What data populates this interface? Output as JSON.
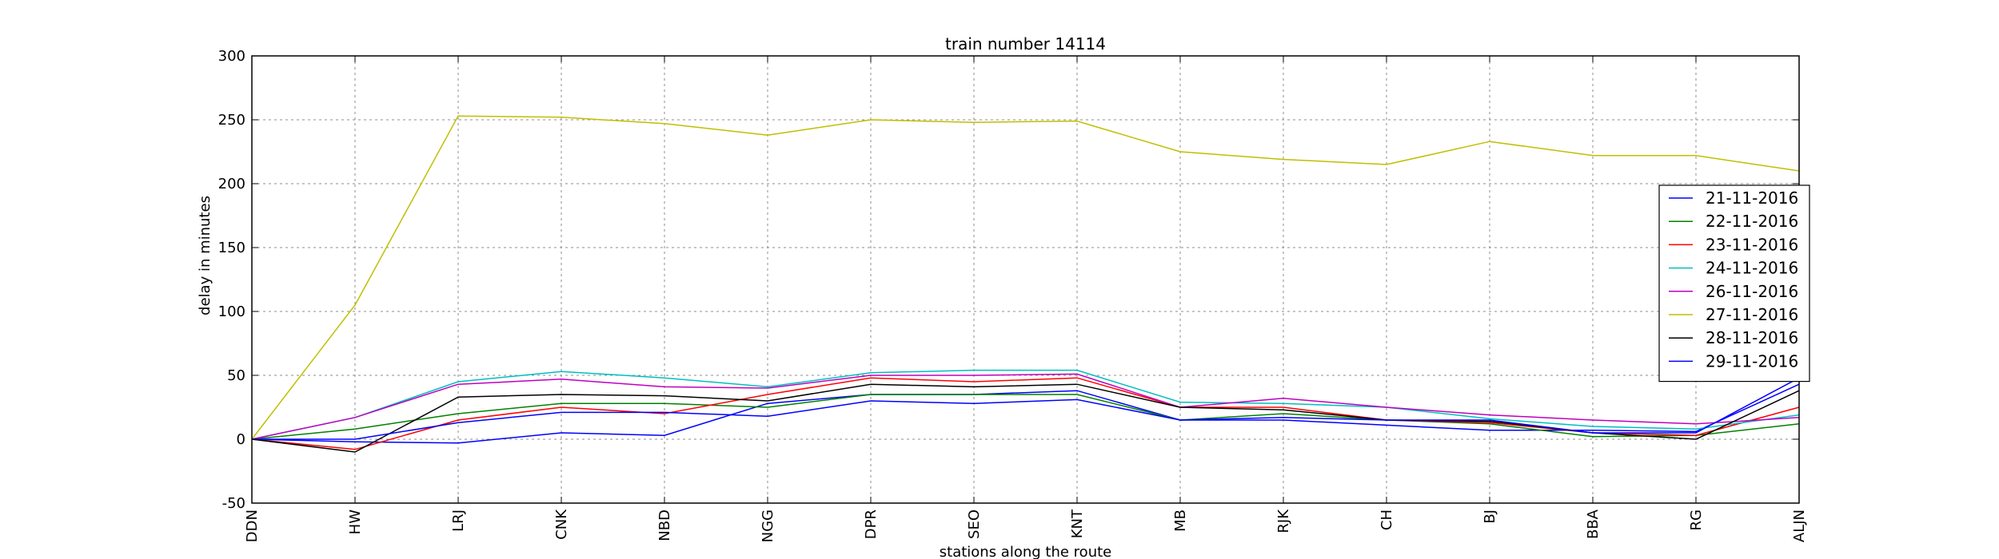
{
  "chart_data": {
    "type": "line",
    "title": "train number 14114",
    "xlabel": "stations along the route",
    "ylabel": "delay in minutes",
    "categories": [
      "DDN",
      "HW",
      "LRJ",
      "CNK",
      "NBD",
      "NGG",
      "DPR",
      "SEO",
      "KNT",
      "MB",
      "RJK",
      "CH",
      "BJ",
      "BBA",
      "RG",
      "ALJN"
    ],
    "ylim": [
      -50,
      300
    ],
    "yticks": [
      -50,
      0,
      50,
      100,
      150,
      200,
      250,
      300
    ],
    "grid": true,
    "legend_position": "right",
    "series": [
      {
        "name": "21-11-2016",
        "color": "#0000ff",
        "values": [
          0,
          -2,
          -3,
          5,
          3,
          28,
          35,
          35,
          38,
          15,
          15,
          11,
          7,
          7,
          6,
          43
        ]
      },
      {
        "name": "22-11-2016",
        "color": "#008000",
        "values": [
          0,
          8,
          20,
          28,
          28,
          25,
          35,
          35,
          35,
          15,
          20,
          15,
          12,
          2,
          3,
          12
        ]
      },
      {
        "name": "23-11-2016",
        "color": "#ff0000",
        "values": [
          0,
          -8,
          15,
          25,
          20,
          35,
          48,
          45,
          48,
          25,
          25,
          15,
          13,
          5,
          3,
          25
        ]
      },
      {
        "name": "24-11-2016",
        "color": "#00bfbf",
        "values": [
          0,
          17,
          45,
          53,
          48,
          41,
          52,
          54,
          54,
          29,
          28,
          25,
          16,
          10,
          8,
          19
        ]
      },
      {
        "name": "26-11-2016",
        "color": "#bf00bf",
        "values": [
          0,
          17,
          43,
          47,
          41,
          40,
          50,
          50,
          51,
          25,
          32,
          25,
          19,
          15,
          12,
          17
        ]
      },
      {
        "name": "27-11-2016",
        "color": "#bfbf00",
        "values": [
          0,
          105,
          253,
          252,
          247,
          238,
          250,
          248,
          249,
          225,
          219,
          215,
          233,
          222,
          222,
          210
        ]
      },
      {
        "name": "28-11-2016",
        "color": "#000000",
        "values": [
          0,
          -10,
          33,
          35,
          34,
          30,
          43,
          41,
          43,
          25,
          23,
          15,
          14,
          5,
          0,
          38
        ]
      },
      {
        "name": "29-11-2016",
        "color": "#0000ff",
        "values": [
          0,
          0,
          13,
          21,
          21,
          18,
          30,
          28,
          31,
          15,
          17,
          15,
          15,
          5,
          5,
          48
        ]
      }
    ]
  }
}
